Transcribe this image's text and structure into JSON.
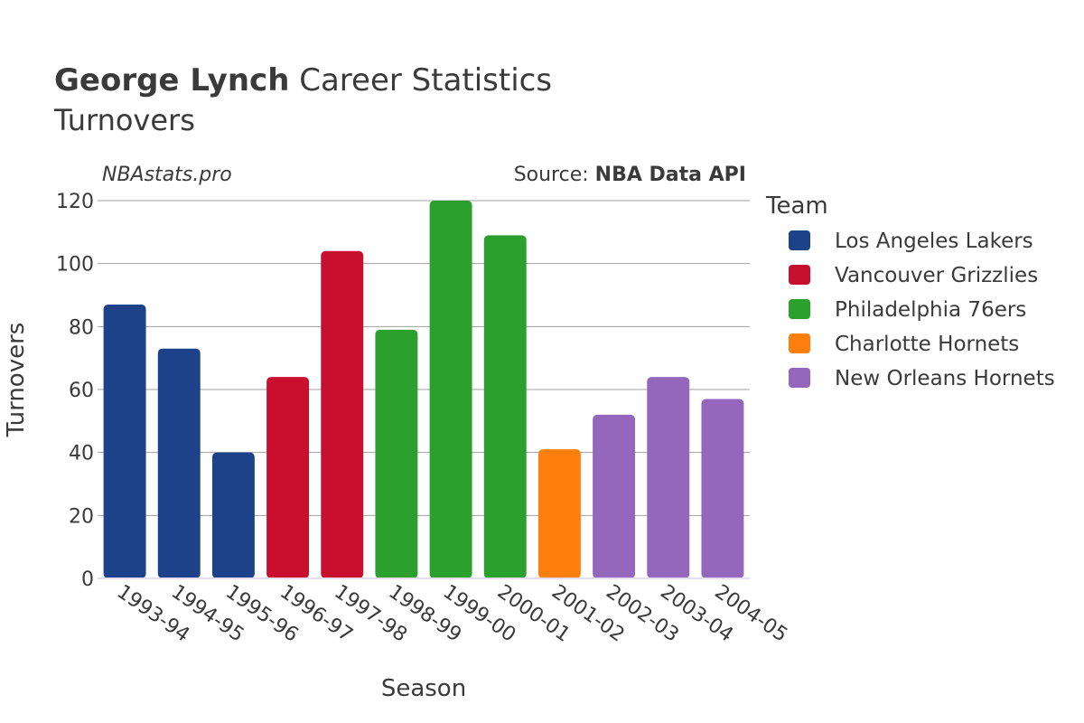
{
  "chart_data": {
    "type": "bar",
    "title_bold": "George Lynch",
    "title_rest": " Career Statistics",
    "subtitle": "Turnovers",
    "watermark": "NBAstats.pro",
    "source_prefix": "Source: ",
    "source_name": "NBA Data API",
    "xlabel": "Season",
    "ylabel": "Turnovers",
    "ylim": [
      0,
      120
    ],
    "yticks": [
      0,
      20,
      40,
      60,
      80,
      100,
      120
    ],
    "legend_title": "Team",
    "legend_position": "right",
    "categories": [
      "1993-94",
      "1994-95",
      "1995-96",
      "1996-97",
      "1997-98",
      "1998-99",
      "1999-00",
      "2000-01",
      "2001-02",
      "2002-03",
      "2003-04",
      "2004-05"
    ],
    "values": [
      87,
      73,
      40,
      64,
      104,
      79,
      120,
      109,
      41,
      52,
      64,
      57
    ],
    "bar_teams": [
      0,
      0,
      0,
      1,
      1,
      2,
      2,
      2,
      3,
      4,
      4,
      4
    ],
    "teams": [
      {
        "name": "Los Angeles Lakers",
        "color": "#1d428a"
      },
      {
        "name": "Vancouver Grizzlies",
        "color": "#c8102e"
      },
      {
        "name": "Philadelphia 76ers",
        "color": "#2ca02c"
      },
      {
        "name": "Charlotte Hornets",
        "color": "#ff7f0e"
      },
      {
        "name": "New Orleans Hornets",
        "color": "#9467bd"
      }
    ]
  }
}
